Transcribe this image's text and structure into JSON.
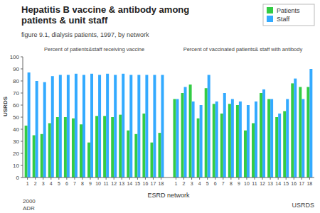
{
  "chart_data": {
    "type": "bar",
    "title": "Hepatitis B vaccine & antibody among\npatients & unit staff",
    "subtitle": "figure 9.1, dialysis patients, 1997, by network",
    "xlabel": "ESRD network",
    "annotations": [
      "Percent of patients&staff receiving vaccine",
      "Percent of vaccinated patients& staff with antibody",
      "USRDS",
      "2000",
      "ADR",
      "USRDS"
    ],
    "categories": [
      1,
      2,
      3,
      4,
      5,
      6,
      7,
      8,
      9,
      10,
      11,
      12,
      13,
      14,
      15,
      16,
      17,
      18,
      1,
      2,
      3,
      4,
      5,
      6,
      7,
      8,
      9,
      10,
      11,
      12,
      13,
      14,
      15,
      16,
      17,
      18
    ],
    "series": [
      {
        "name": "Patients",
        "color": "#33cc44",
        "values": [
          43,
          35,
          36,
          45,
          50,
          50,
          49,
          44,
          29,
          51,
          51,
          50,
          52,
          39,
          36,
          53,
          29,
          37,
          65,
          70,
          77,
          49,
          74,
          61,
          53,
          61,
          60,
          39,
          45,
          70,
          65,
          50,
          55,
          78,
          75,
          75
        ]
      },
      {
        "name": "Staff",
        "color": "#33aaff",
        "values": [
          87,
          80,
          79,
          84,
          85,
          85,
          86,
          85,
          86,
          85,
          86,
          85,
          86,
          85,
          85,
          85,
          85,
          85,
          65,
          75,
          63,
          60,
          85,
          63,
          70,
          65,
          63,
          60,
          63,
          73,
          65,
          53,
          65,
          82,
          65,
          90
        ]
      }
    ],
    "ylim": [
      0,
      100
    ],
    "yticks": [
      0,
      10,
      20,
      30,
      40,
      50,
      60,
      70,
      80,
      90,
      100
    ],
    "grid": false,
    "legend": "upper right"
  }
}
